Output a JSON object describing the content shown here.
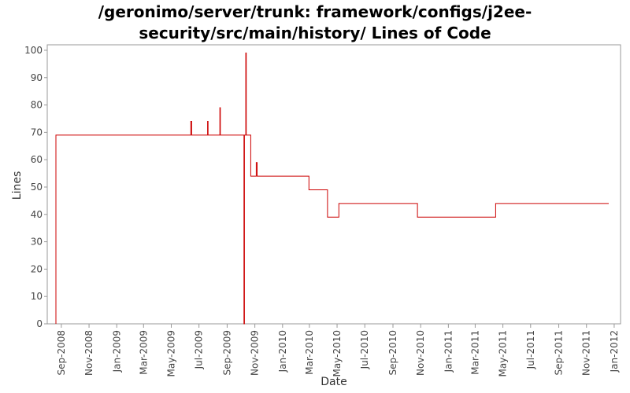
{
  "chart_data": {
    "type": "line",
    "title_lines": [
      "/geronimo/server/trunk: framework/configs/j2ee-",
      "security/src/main/history/ Lines of Code"
    ],
    "xlabel": "Date",
    "ylabel": "Lines",
    "ylim": [
      0,
      102
    ],
    "xlim": [
      "2008-08-01",
      "2012-01-15"
    ],
    "grid": false,
    "legend": "none",
    "y_ticks": [
      0,
      10,
      20,
      30,
      40,
      50,
      60,
      70,
      80,
      90,
      100
    ],
    "x_ticks": [
      {
        "date": "2008-09-01",
        "label": "Sep-2008"
      },
      {
        "date": "2008-11-01",
        "label": "Nov-2008"
      },
      {
        "date": "2009-01-01",
        "label": "Jan-2009"
      },
      {
        "date": "2009-03-01",
        "label": "Mar-2009"
      },
      {
        "date": "2009-05-01",
        "label": "May-2009"
      },
      {
        "date": "2009-07-01",
        "label": "Jul-2009"
      },
      {
        "date": "2009-09-01",
        "label": "Sep-2009"
      },
      {
        "date": "2009-11-01",
        "label": "Nov-2009"
      },
      {
        "date": "2010-01-01",
        "label": "Jan-2010"
      },
      {
        "date": "2010-03-01",
        "label": "Mar-2010"
      },
      {
        "date": "2010-05-01",
        "label": "May-2010"
      },
      {
        "date": "2010-07-01",
        "label": "Jul-2010"
      },
      {
        "date": "2010-09-01",
        "label": "Sep-2010"
      },
      {
        "date": "2010-11-01",
        "label": "Nov-2010"
      },
      {
        "date": "2011-01-01",
        "label": "Jan-2011"
      },
      {
        "date": "2011-03-01",
        "label": "Mar-2011"
      },
      {
        "date": "2011-05-01",
        "label": "May-2011"
      },
      {
        "date": "2011-07-01",
        "label": "Jul-2011"
      },
      {
        "date": "2011-09-01",
        "label": "Sep-2011"
      },
      {
        "date": "2011-11-01",
        "label": "Nov-2011"
      },
      {
        "date": "2012-01-01",
        "label": "Jan-2012"
      }
    ],
    "series": [
      {
        "color": "#cc0000",
        "points": [
          {
            "x": "2008-08-20",
            "y": 0
          },
          {
            "x": "2008-08-20",
            "y": 69
          },
          {
            "x": "2009-06-13",
            "y": 69
          },
          {
            "x": "2009-06-13",
            "y": 74
          },
          {
            "x": "2009-06-15",
            "y": 74
          },
          {
            "x": "2009-06-15",
            "y": 69
          },
          {
            "x": "2009-07-20",
            "y": 69
          },
          {
            "x": "2009-07-20",
            "y": 74
          },
          {
            "x": "2009-07-21",
            "y": 74
          },
          {
            "x": "2009-07-21",
            "y": 69
          },
          {
            "x": "2009-08-16",
            "y": 69
          },
          {
            "x": "2009-08-16",
            "y": 79
          },
          {
            "x": "2009-08-17",
            "y": 79
          },
          {
            "x": "2009-08-17",
            "y": 69
          },
          {
            "x": "2009-10-08",
            "y": 69
          },
          {
            "x": "2009-10-08",
            "y": 0
          },
          {
            "x": "2009-10-09",
            "y": 0
          },
          {
            "x": "2009-10-09",
            "y": 69
          },
          {
            "x": "2009-10-12",
            "y": 69
          },
          {
            "x": "2009-10-12",
            "y": 99
          },
          {
            "x": "2009-10-13",
            "y": 99
          },
          {
            "x": "2009-10-13",
            "y": 69
          },
          {
            "x": "2009-10-23",
            "y": 69
          },
          {
            "x": "2009-10-23",
            "y": 54
          },
          {
            "x": "2009-11-04",
            "y": 54
          },
          {
            "x": "2009-11-04",
            "y": 59
          },
          {
            "x": "2009-11-06",
            "y": 59
          },
          {
            "x": "2009-11-06",
            "y": 54
          },
          {
            "x": "2010-02-28",
            "y": 54
          },
          {
            "x": "2010-02-28",
            "y": 49
          },
          {
            "x": "2010-04-10",
            "y": 49
          },
          {
            "x": "2010-04-10",
            "y": 39
          },
          {
            "x": "2010-05-05",
            "y": 39
          },
          {
            "x": "2010-05-05",
            "y": 44
          },
          {
            "x": "2010-10-25",
            "y": 44
          },
          {
            "x": "2010-10-25",
            "y": 39
          },
          {
            "x": "2011-04-15",
            "y": 39
          },
          {
            "x": "2011-04-15",
            "y": 44
          },
          {
            "x": "2011-12-20",
            "y": 44
          }
        ]
      }
    ]
  }
}
